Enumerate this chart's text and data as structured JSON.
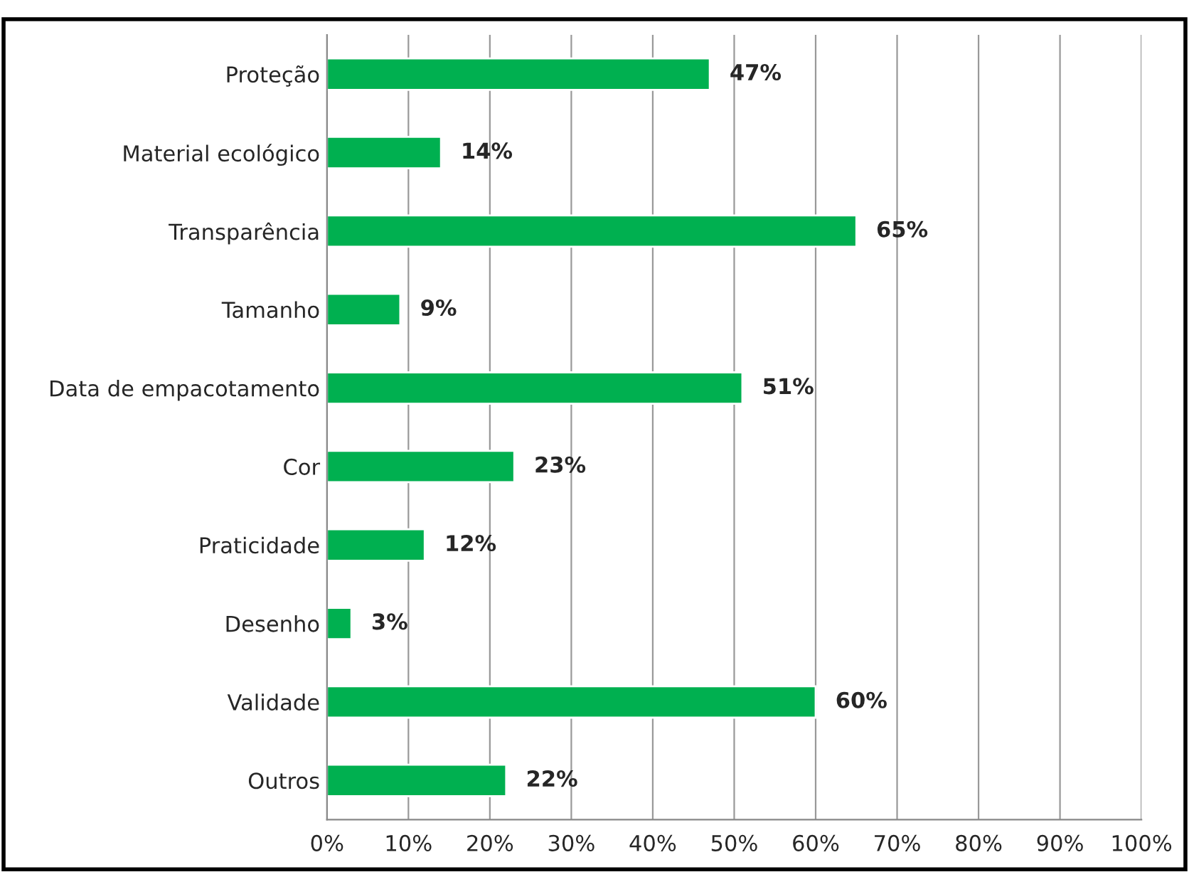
{
  "chart_data": {
    "type": "bar",
    "orientation": "horizontal",
    "categories": [
      "Proteção",
      "Material ecológico",
      "Transparência",
      "Tamanho",
      "Data de empacotamento",
      "Cor",
      "Praticidade",
      "Desenho",
      "Validade",
      "Outros"
    ],
    "values": [
      47,
      14,
      65,
      9,
      51,
      23,
      12,
      3,
      60,
      22
    ],
    "value_labels": [
      "47%",
      "14%",
      "65%",
      "9%",
      "51%",
      "23%",
      "12%",
      "3%",
      "60%",
      "22%"
    ],
    "color": "#00b050",
    "xlim": [
      0,
      100
    ],
    "xticks": [
      {
        "value": 0,
        "label": "0%"
      },
      {
        "value": 10,
        "label": "10%"
      },
      {
        "value": 20,
        "label": "20%"
      },
      {
        "value": 30,
        "label": "30%"
      },
      {
        "value": 40,
        "label": "40%"
      },
      {
        "value": 50,
        "label": "50%"
      },
      {
        "value": 60,
        "label": "60%"
      },
      {
        "value": 70,
        "label": "70%"
      },
      {
        "value": 80,
        "label": "80%"
      },
      {
        "value": 90,
        "label": "90%"
      },
      {
        "value": 100,
        "label": "100%"
      }
    ],
    "grid": "x"
  }
}
